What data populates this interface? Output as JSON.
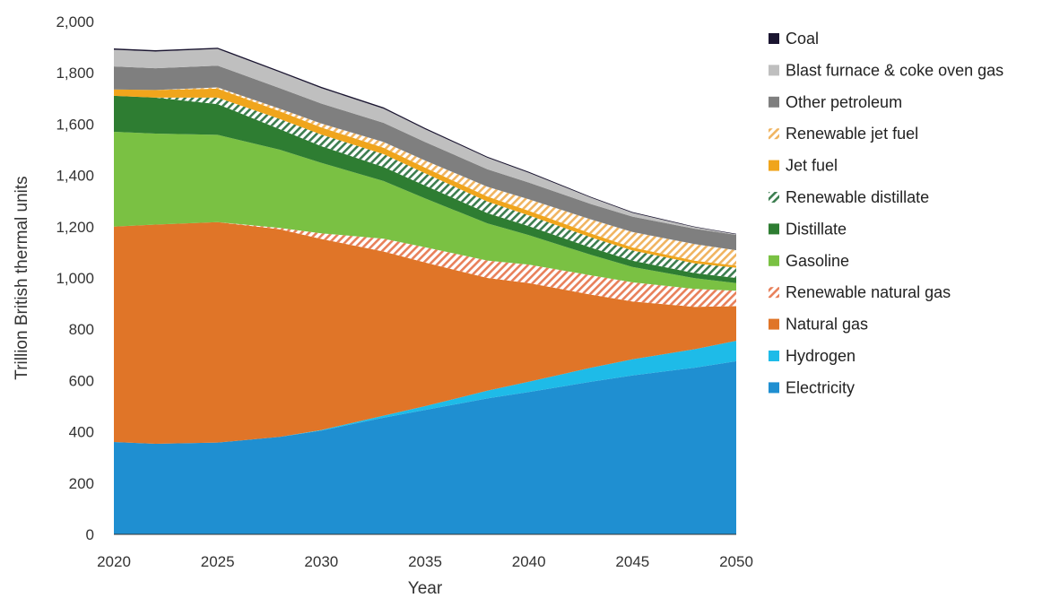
{
  "chart_data": {
    "type": "area",
    "stacked": true,
    "xlabel": "Year",
    "ylabel": "Trillion British thermal units",
    "xlim": [
      2020,
      2050
    ],
    "ylim": [
      0,
      2000
    ],
    "xticks": [
      "2020",
      "2025",
      "2030",
      "2035",
      "2040",
      "2045",
      "2050"
    ],
    "yticks": [
      "0",
      "200",
      "400",
      "600",
      "800",
      "1,000",
      "1,200",
      "1,400",
      "1,600",
      "1,800",
      "2,000"
    ],
    "grid": false,
    "legend_position": "right",
    "x": [
      2020,
      2022,
      2025,
      2028,
      2030,
      2033,
      2035,
      2038,
      2040,
      2043,
      2045,
      2048,
      2050
    ],
    "series": [
      {
        "name": "Electricity",
        "color": "#1f8fd1",
        "pattern": "solid",
        "values": [
          360,
          353,
          358,
          380,
          405,
          455,
          485,
          530,
          555,
          595,
          620,
          650,
          675
        ]
      },
      {
        "name": "Hydrogen",
        "color": "#1ebbe8",
        "pattern": "solid",
        "values": [
          0,
          0,
          0,
          0,
          2,
          8,
          15,
          30,
          40,
          55,
          63,
          72,
          80
        ]
      },
      {
        "name": "Natural gas",
        "color": "#e07528",
        "pattern": "solid",
        "values": [
          840,
          855,
          860,
          810,
          745,
          640,
          560,
          440,
          385,
          285,
          225,
          165,
          135
        ]
      },
      {
        "name": "Renewable natural gas",
        "color": "#e8805a",
        "pattern": "hatch",
        "values": [
          0,
          0,
          0,
          5,
          22,
          50,
          60,
          68,
          72,
          75,
          75,
          70,
          60
        ]
      },
      {
        "name": "Gasoline",
        "color": "#7ac143",
        "pattern": "solid",
        "values": [
          370,
          355,
          340,
          305,
          275,
          225,
          190,
          145,
          115,
          80,
          60,
          42,
          30
        ]
      },
      {
        "name": "Distillate",
        "color": "#2e7d32",
        "pattern": "solid",
        "values": [
          140,
          140,
          120,
          80,
          65,
          55,
          50,
          40,
          35,
          28,
          24,
          20,
          20
        ]
      },
      {
        "name": "Renewable distillate",
        "color": "#3b7d4f",
        "pattern": "hatch",
        "values": [
          0,
          0,
          25,
          40,
          45,
          50,
          48,
          45,
          42,
          40,
          40,
          38,
          40
        ]
      },
      {
        "name": "Jet fuel",
        "color": "#f0a51c",
        "pattern": "solid",
        "values": [
          25,
          30,
          35,
          30,
          28,
          25,
          22,
          20,
          18,
          15,
          12,
          10,
          8
        ]
      },
      {
        "name": "Renewable jet fuel",
        "color": "#f0b460",
        "pattern": "hatch",
        "values": [
          0,
          0,
          5,
          10,
          15,
          22,
          28,
          38,
          45,
          55,
          60,
          65,
          60
        ]
      },
      {
        "name": "Other petroleum",
        "color": "#7f7f7f",
        "pattern": "solid",
        "values": [
          90,
          85,
          85,
          80,
          78,
          75,
          72,
          68,
          65,
          60,
          60,
          60,
          60
        ]
      },
      {
        "name": "Blast furnace & coke oven gas",
        "color": "#bfbfbf",
        "pattern": "solid",
        "values": [
          65,
          65,
          65,
          62,
          60,
          55,
          50,
          45,
          38,
          25,
          15,
          6,
          2
        ]
      },
      {
        "name": "Coal",
        "color": "#1a1530",
        "pattern": "solid",
        "values": [
          5,
          5,
          5,
          5,
          5,
          5,
          5,
          4,
          4,
          3,
          3,
          2,
          2
        ]
      }
    ]
  }
}
